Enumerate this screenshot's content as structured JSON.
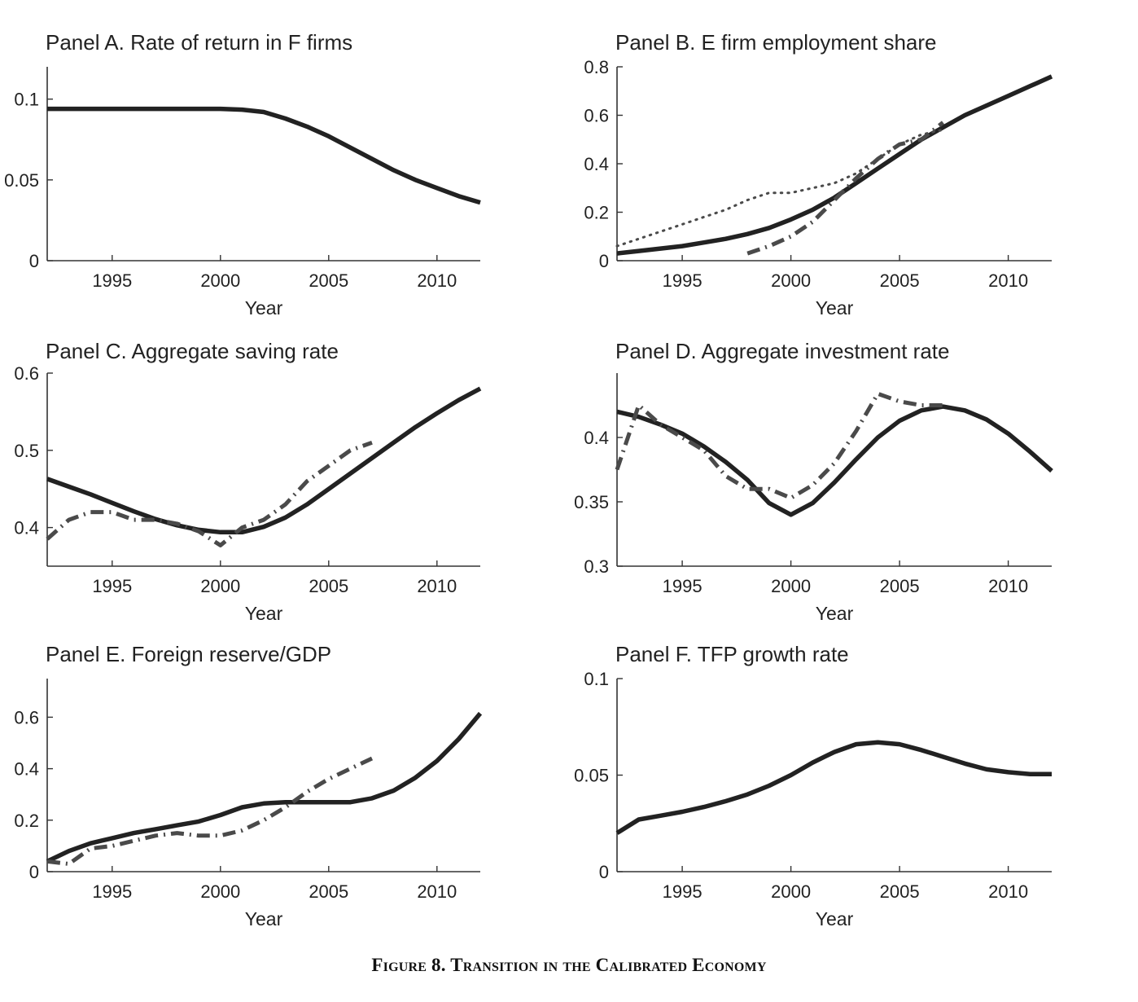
{
  "caption": "Figure 8. Transition in the Calibrated Economy",
  "styles": {
    "model_color": "#222222",
    "data_color": "#4a4a4a",
    "axis_color": "#333333"
  },
  "chart_data": [
    {
      "panel": "A",
      "type": "line",
      "title": "Panel A. Rate of return in F firms",
      "xlabel": "Year",
      "ylabel": "",
      "xlim": [
        1992,
        2012
      ],
      "ylim": [
        0,
        0.12
      ],
      "xticks": [
        1995,
        2000,
        2005,
        2010
      ],
      "yticks": [
        0,
        0.05,
        0.1
      ],
      "ytick_labels": [
        "0",
        "0.05",
        "0.1"
      ],
      "series": [
        {
          "style": "solid",
          "x": [
            1992,
            1993,
            1994,
            1995,
            1996,
            1997,
            1998,
            1999,
            2000,
            2001,
            2002,
            2003,
            2004,
            2005,
            2006,
            2007,
            2008,
            2009,
            2010,
            2011,
            2012
          ],
          "y": [
            0.094,
            0.094,
            0.094,
            0.094,
            0.094,
            0.094,
            0.094,
            0.094,
            0.094,
            0.0935,
            0.092,
            0.088,
            0.083,
            0.077,
            0.07,
            0.063,
            0.056,
            0.05,
            0.045,
            0.04,
            0.036
          ]
        }
      ]
    },
    {
      "panel": "B",
      "type": "line",
      "title": "Panel B. E firm employment share",
      "xlabel": "Year",
      "ylabel": "",
      "xlim": [
        1992,
        2012
      ],
      "ylim": [
        0,
        0.8
      ],
      "xticks": [
        1995,
        2000,
        2005,
        2010
      ],
      "yticks": [
        0,
        0.2,
        0.4,
        0.6,
        0.8
      ],
      "ytick_labels": [
        "0",
        "0.2",
        "0.4",
        "0.6",
        "0.8"
      ],
      "series": [
        {
          "style": "solid",
          "x": [
            1992,
            1993,
            1994,
            1995,
            1996,
            1997,
            1998,
            1999,
            2000,
            2001,
            2002,
            2003,
            2004,
            2005,
            2006,
            2007,
            2008,
            2009,
            2010,
            2011,
            2012
          ],
          "y": [
            0.03,
            0.04,
            0.05,
            0.06,
            0.075,
            0.09,
            0.11,
            0.135,
            0.17,
            0.21,
            0.26,
            0.32,
            0.38,
            0.44,
            0.5,
            0.55,
            0.6,
            0.64,
            0.68,
            0.72,
            0.76
          ]
        },
        {
          "style": "dotted",
          "x": [
            1992,
            1993,
            1994,
            1995,
            1996,
            1997,
            1998,
            1999,
            2000,
            2001,
            2002,
            2003,
            2004,
            2005,
            2006,
            2007
          ],
          "y": [
            0.06,
            0.09,
            0.12,
            0.15,
            0.18,
            0.21,
            0.25,
            0.28,
            0.28,
            0.3,
            0.32,
            0.36,
            0.42,
            0.48,
            0.52,
            0.54
          ]
        },
        {
          "style": "dashdot",
          "x": [
            1998,
            1999,
            2000,
            2001,
            2002,
            2003,
            2004,
            2005,
            2006,
            2007
          ],
          "y": [
            0.03,
            0.06,
            0.1,
            0.16,
            0.25,
            0.34,
            0.42,
            0.48,
            0.5,
            0.57
          ]
        }
      ]
    },
    {
      "panel": "C",
      "type": "line",
      "title": "Panel C. Aggregate saving rate",
      "xlabel": "Year",
      "ylabel": "",
      "xlim": [
        1992,
        2012
      ],
      "ylim": [
        0.35,
        0.6
      ],
      "xticks": [
        1995,
        2000,
        2005,
        2010
      ],
      "yticks": [
        0.4,
        0.5,
        0.6
      ],
      "ytick_labels": [
        "0.4",
        "0.5",
        "0.6"
      ],
      "series": [
        {
          "style": "solid",
          "x": [
            1992,
            1993,
            1994,
            1995,
            1996,
            1997,
            1998,
            1999,
            2000,
            2001,
            2002,
            2003,
            2004,
            2005,
            2006,
            2007,
            2008,
            2009,
            2010,
            2011,
            2012
          ],
          "y": [
            0.463,
            0.453,
            0.443,
            0.432,
            0.421,
            0.411,
            0.403,
            0.397,
            0.394,
            0.394,
            0.401,
            0.413,
            0.43,
            0.45,
            0.47,
            0.49,
            0.51,
            0.53,
            0.548,
            0.565,
            0.58
          ]
        },
        {
          "style": "dashdot",
          "x": [
            1992,
            1993,
            1994,
            1995,
            1996,
            1997,
            1998,
            1999,
            2000,
            2001,
            2002,
            2003,
            2004,
            2005,
            2006,
            2007
          ],
          "y": [
            0.385,
            0.41,
            0.42,
            0.42,
            0.41,
            0.41,
            0.405,
            0.395,
            0.377,
            0.4,
            0.41,
            0.43,
            0.46,
            0.48,
            0.5,
            0.51
          ]
        }
      ]
    },
    {
      "panel": "D",
      "type": "line",
      "title": "Panel D. Aggregate investment rate",
      "xlabel": "Year",
      "ylabel": "",
      "xlim": [
        1992,
        2012
      ],
      "ylim": [
        0.3,
        0.45
      ],
      "xticks": [
        1995,
        2000,
        2005,
        2010
      ],
      "yticks": [
        0.3,
        0.35,
        0.4
      ],
      "ytick_labels": [
        "0.3",
        "0.35",
        "0.4"
      ],
      "series": [
        {
          "style": "solid",
          "x": [
            1992,
            1993,
            1994,
            1995,
            1996,
            1997,
            1998,
            1999,
            2000,
            2001,
            2002,
            2003,
            2004,
            2005,
            2006,
            2007,
            2008,
            2009,
            2010,
            2011,
            2012
          ],
          "y": [
            0.42,
            0.416,
            0.41,
            0.403,
            0.393,
            0.381,
            0.367,
            0.349,
            0.34,
            0.349,
            0.365,
            0.383,
            0.4,
            0.413,
            0.421,
            0.424,
            0.421,
            0.414,
            0.403,
            0.389,
            0.374
          ]
        },
        {
          "style": "dashdot",
          "x": [
            1992,
            1993,
            1994,
            1995,
            1996,
            1997,
            1998,
            1999,
            2000,
            2001,
            2002,
            2003,
            2004,
            2005,
            2006,
            2007
          ],
          "y": [
            0.375,
            0.425,
            0.41,
            0.4,
            0.39,
            0.37,
            0.36,
            0.36,
            0.353,
            0.363,
            0.38,
            0.405,
            0.434,
            0.428,
            0.425,
            0.425
          ]
        }
      ]
    },
    {
      "panel": "E",
      "type": "line",
      "title": "Panel E. Foreign reserve/GDP",
      "xlabel": "Year",
      "ylabel": "",
      "xlim": [
        1992,
        2012
      ],
      "ylim": [
        0,
        0.75
      ],
      "xticks": [
        1995,
        2000,
        2005,
        2010
      ],
      "yticks": [
        0,
        0.2,
        0.4,
        0.6
      ],
      "ytick_labels": [
        "0",
        "0.2",
        "0.4",
        "0.6"
      ],
      "series": [
        {
          "style": "solid",
          "x": [
            1992,
            1993,
            1994,
            1995,
            1996,
            1997,
            1998,
            1999,
            2000,
            2001,
            2002,
            2003,
            2004,
            2005,
            2006,
            2007,
            2008,
            2009,
            2010,
            2011,
            2012
          ],
          "y": [
            0.04,
            0.08,
            0.11,
            0.13,
            0.15,
            0.165,
            0.18,
            0.195,
            0.22,
            0.25,
            0.265,
            0.27,
            0.27,
            0.27,
            0.27,
            0.285,
            0.315,
            0.365,
            0.43,
            0.515,
            0.615
          ]
        },
        {
          "style": "dashdot",
          "x": [
            1992,
            1993,
            1994,
            1995,
            1996,
            1997,
            1998,
            1999,
            2000,
            2001,
            2002,
            2003,
            2004,
            2005,
            2006,
            2007
          ],
          "y": [
            0.04,
            0.03,
            0.09,
            0.1,
            0.12,
            0.14,
            0.15,
            0.14,
            0.14,
            0.16,
            0.2,
            0.25,
            0.31,
            0.36,
            0.4,
            0.44
          ]
        }
      ]
    },
    {
      "panel": "F",
      "type": "line",
      "title": "Panel F. TFP growth rate",
      "xlabel": "Year",
      "ylabel": "",
      "xlim": [
        1992,
        2012
      ],
      "ylim": [
        0,
        0.1
      ],
      "xticks": [
        1995,
        2000,
        2005,
        2010
      ],
      "yticks": [
        0,
        0.05,
        0.1
      ],
      "ytick_labels": [
        "0",
        "0.05",
        "0.1"
      ],
      "series": [
        {
          "style": "solid",
          "x": [
            1992,
            1993,
            1994,
            1995,
            1996,
            1997,
            1998,
            1999,
            2000,
            2001,
            2002,
            2003,
            2004,
            2005,
            2006,
            2007,
            2008,
            2009,
            2010,
            2011,
            2012
          ],
          "y": [
            0.02,
            0.027,
            0.029,
            0.031,
            0.0335,
            0.0365,
            0.04,
            0.0445,
            0.05,
            0.0565,
            0.062,
            0.066,
            0.067,
            0.066,
            0.063,
            0.0595,
            0.056,
            0.053,
            0.0515,
            0.0505,
            0.0505
          ]
        }
      ]
    }
  ]
}
